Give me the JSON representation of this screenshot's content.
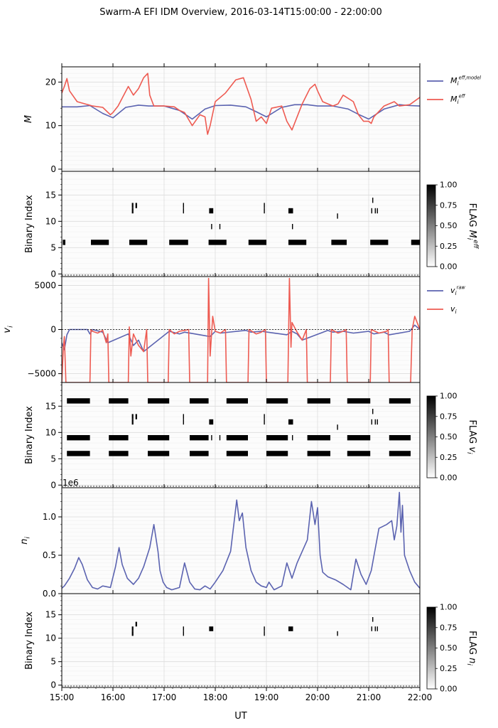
{
  "title": "Swarm-A EFI IDM Overview, 2016-03-14T15:00:00 - 22:00:00",
  "xlabel": "UT",
  "x_ticks": [
    "15:00",
    "16:00",
    "17:00",
    "18:00",
    "19:00",
    "20:00",
    "21:00",
    "22:00"
  ],
  "colors": {
    "model": "#5b63b0",
    "eff": "#ee5b52",
    "grid": "#dddddd"
  },
  "chart_data": [
    {
      "type": "line",
      "ylabel": "M",
      "xlim": [
        15.0,
        22.0
      ],
      "ylim": [
        -0.5,
        23.5
      ],
      "yticks": [
        0,
        10,
        20
      ],
      "legend": "right",
      "series": [
        {
          "name": "M_i^{eff,model}",
          "color": "#5b63b0",
          "x": [
            15.0,
            15.3,
            15.55,
            15.8,
            16.0,
            16.25,
            16.5,
            16.7,
            17.0,
            17.3,
            17.55,
            17.8,
            18.0,
            18.3,
            18.6,
            18.8,
            19.0,
            19.3,
            19.55,
            19.8,
            20.0,
            20.3,
            20.6,
            20.8,
            21.0,
            21.3,
            21.6,
            21.8,
            22.0
          ],
          "y": [
            14.3,
            14.3,
            14.6,
            12.8,
            11.8,
            14.2,
            14.7,
            14.5,
            14.5,
            13.5,
            11.5,
            13.8,
            14.6,
            14.7,
            14.3,
            13.2,
            12.0,
            14.2,
            14.8,
            14.8,
            14.5,
            14.5,
            13.8,
            12.6,
            11.5,
            13.8,
            14.8,
            14.6,
            14.5
          ]
        },
        {
          "name": "M_i^{eff}",
          "color": "#ee5b52",
          "x": [
            15.0,
            15.05,
            15.1,
            15.15,
            15.3,
            15.6,
            15.8,
            15.95,
            16.0,
            16.1,
            16.3,
            16.4,
            16.5,
            16.6,
            16.68,
            16.72,
            16.8,
            17.0,
            17.2,
            17.3,
            17.4,
            17.55,
            17.7,
            17.8,
            17.85,
            17.9,
            18.0,
            18.2,
            18.4,
            18.55,
            18.7,
            18.8,
            18.9,
            19.0,
            19.1,
            19.3,
            19.4,
            19.5,
            19.7,
            19.85,
            19.95,
            20.0,
            20.1,
            20.3,
            20.4,
            20.5,
            20.7,
            20.8,
            20.9,
            21.0,
            21.05,
            21.1,
            21.3,
            21.5,
            21.6,
            21.8,
            22.0
          ],
          "y": [
            17.5,
            19.0,
            20.8,
            18.0,
            15.5,
            14.5,
            14.2,
            12.5,
            13.0,
            14.5,
            19.0,
            17.0,
            18.5,
            21.0,
            22.0,
            17.0,
            14.5,
            14.5,
            14.3,
            13.5,
            13.0,
            10.0,
            12.5,
            12.0,
            8.0,
            10.0,
            15.5,
            17.5,
            20.5,
            21.0,
            16.0,
            11.0,
            12.0,
            10.5,
            14.0,
            14.5,
            11.0,
            9.0,
            15.0,
            18.5,
            19.5,
            18.0,
            15.5,
            14.5,
            15.0,
            17.0,
            15.5,
            12.5,
            11.0,
            11.0,
            10.5,
            12.0,
            14.5,
            15.5,
            14.5,
            14.8,
            16.5
          ]
        }
      ]
    },
    {
      "type": "heatmap",
      "ylabel": "Binary Index",
      "colorbar_label": "FLAG M_i^{eff}",
      "colorbar_ticks": [
        "0.00",
        "0.25",
        "0.50",
        "0.75",
        "1.00"
      ],
      "xlim": [
        15.0,
        22.0
      ],
      "ylim": [
        -0.5,
        19.5
      ],
      "yticks": [
        0,
        5,
        10,
        15
      ],
      "cells": [
        [
          15.02,
          15.07,
          6
        ],
        [
          15.57,
          15.92,
          6
        ],
        [
          16.32,
          16.67,
          6
        ],
        [
          17.1,
          17.47,
          6
        ],
        [
          17.87,
          18.22,
          6
        ],
        [
          18.65,
          19.0,
          6
        ],
        [
          19.43,
          19.78,
          6
        ],
        [
          20.27,
          20.57,
          6
        ],
        [
          21.03,
          21.38,
          6
        ],
        [
          21.83,
          22.0,
          6
        ],
        [
          16.37,
          16.4,
          12
        ],
        [
          16.37,
          16.4,
          13
        ],
        [
          16.44,
          16.47,
          13
        ],
        [
          17.37,
          17.39,
          12
        ],
        [
          17.37,
          17.39,
          13
        ],
        [
          17.88,
          17.96,
          12
        ],
        [
          18.95,
          18.97,
          12
        ],
        [
          18.95,
          18.97,
          13
        ],
        [
          19.43,
          19.52,
          12
        ],
        [
          20.38,
          20.4,
          11
        ],
        [
          21.05,
          21.07,
          12
        ],
        [
          21.07,
          21.09,
          14
        ],
        [
          21.12,
          21.14,
          12
        ],
        [
          21.16,
          21.18,
          12
        ],
        [
          17.92,
          17.94,
          9
        ],
        [
          18.08,
          18.1,
          9
        ],
        [
          19.5,
          19.52,
          9
        ]
      ]
    },
    {
      "type": "line",
      "ylabel": "v_i",
      "xlim": [
        15.0,
        22.0
      ],
      "ylim": [
        -6000,
        6000
      ],
      "yticks": [
        -5000,
        0,
        5000
      ],
      "legend": "right",
      "series": [
        {
          "name": "v_i^{raw}",
          "color": "#5b63b0",
          "x": [
            15.0,
            15.05,
            15.1,
            15.15,
            15.4,
            15.5,
            15.55,
            15.6,
            15.8,
            15.9,
            16.3,
            16.4,
            16.5,
            16.6,
            17.1,
            17.3,
            17.4,
            17.9,
            18.0,
            18.1,
            18.6,
            18.7,
            18.9,
            19.4,
            19.5,
            19.6,
            19.7,
            20.2,
            20.3,
            20.5,
            20.7,
            21.0,
            21.1,
            21.3,
            21.4,
            21.8,
            21.9,
            22.0
          ],
          "y": [
            -1500,
            -2300,
            -600,
            0,
            0,
            0,
            -500,
            0,
            -300,
            -1500,
            -500,
            -1800,
            -1200,
            -2500,
            -200,
            -500,
            -300,
            -800,
            -200,
            -400,
            -100,
            -300,
            -200,
            -600,
            -200,
            -500,
            -1200,
            -100,
            -300,
            -200,
            -400,
            -200,
            -500,
            -300,
            -600,
            -200,
            500,
            0
          ]
        },
        {
          "name": "v_i",
          "color": "#ee5b52",
          "x": [
            15.0,
            15.03,
            15.05,
            15.08,
            15.1,
            15.12,
            15.15,
            15.55,
            15.57,
            15.6,
            15.7,
            15.8,
            15.87,
            15.9,
            15.92,
            16.3,
            16.32,
            16.35,
            16.4,
            16.5,
            16.6,
            16.66,
            16.68,
            17.08,
            17.1,
            17.2,
            17.3,
            17.4,
            17.48,
            17.5,
            17.85,
            17.87,
            17.9,
            17.95,
            18.0,
            18.1,
            18.2,
            18.22,
            18.64,
            18.66,
            18.8,
            18.9,
            18.98,
            19.0,
            19.42,
            19.45,
            19.48,
            19.5,
            19.6,
            19.7,
            19.78,
            19.8,
            20.25,
            20.27,
            20.4,
            20.5,
            20.56,
            20.58,
            21.03,
            21.05,
            21.2,
            21.35,
            21.38,
            21.4,
            21.82,
            21.85,
            21.9,
            22.0
          ],
          "y": [
            -6000,
            -2000,
            -800,
            -6000,
            -6000,
            -6000,
            -6000,
            -6000,
            0,
            -200,
            -400,
            -100,
            -1500,
            -500,
            -6000,
            -6000,
            300,
            -3000,
            -500,
            -1800,
            -2500,
            0,
            -6000,
            -6000,
            0,
            -500,
            -200,
            -100,
            0,
            -6000,
            -6000,
            5800,
            -3000,
            1500,
            -200,
            -400,
            0,
            -6000,
            -6000,
            0,
            -500,
            -300,
            0,
            -6000,
            -6000,
            5800,
            -2000,
            800,
            -300,
            -1200,
            0,
            -6000,
            -6000,
            0,
            -400,
            -200,
            0,
            -6000,
            -6000,
            0,
            -400,
            -200,
            0,
            -6000,
            -6000,
            0,
            1500,
            0
          ]
        }
      ]
    },
    {
      "type": "heatmap",
      "ylabel": "Binary Index",
      "colorbar_label": "FLAG v_i",
      "colorbar_ticks": [
        "0.00",
        "0.25",
        "0.50",
        "0.75",
        "1.00"
      ],
      "xlim": [
        15.0,
        22.0
      ],
      "ylim": [
        -0.5,
        19.5
      ],
      "yticks": [
        0,
        5,
        10,
        15
      ],
      "cells": [
        [
          15.1,
          15.55,
          16
        ],
        [
          15.92,
          16.3,
          16
        ],
        [
          16.68,
          17.1,
          16
        ],
        [
          17.5,
          17.87,
          16
        ],
        [
          18.22,
          18.64,
          16
        ],
        [
          19.0,
          19.42,
          16
        ],
        [
          19.8,
          20.25,
          16
        ],
        [
          20.58,
          21.03,
          16
        ],
        [
          21.4,
          21.82,
          16
        ],
        [
          15.1,
          15.55,
          9
        ],
        [
          15.92,
          16.3,
          9
        ],
        [
          16.68,
          17.1,
          9
        ],
        [
          17.5,
          17.87,
          9
        ],
        [
          18.22,
          18.64,
          9
        ],
        [
          19.0,
          19.42,
          9
        ],
        [
          19.8,
          20.25,
          9
        ],
        [
          20.58,
          21.03,
          9
        ],
        [
          21.4,
          21.82,
          9
        ],
        [
          15.1,
          15.55,
          6
        ],
        [
          15.92,
          16.3,
          6
        ],
        [
          16.68,
          17.1,
          6
        ],
        [
          17.5,
          17.87,
          6
        ],
        [
          18.22,
          18.64,
          6
        ],
        [
          19.0,
          19.42,
          6
        ],
        [
          19.8,
          20.25,
          6
        ],
        [
          20.58,
          21.03,
          6
        ],
        [
          21.4,
          21.82,
          6
        ],
        [
          16.37,
          16.4,
          12
        ],
        [
          16.37,
          16.4,
          13
        ],
        [
          16.44,
          16.47,
          13
        ],
        [
          17.37,
          17.39,
          12
        ],
        [
          17.37,
          17.39,
          13
        ],
        [
          17.88,
          17.96,
          12
        ],
        [
          18.95,
          18.97,
          12
        ],
        [
          18.95,
          18.97,
          13
        ],
        [
          19.43,
          19.52,
          12
        ],
        [
          20.38,
          20.4,
          11
        ],
        [
          21.05,
          21.07,
          12
        ],
        [
          21.07,
          21.09,
          14
        ],
        [
          21.12,
          21.14,
          12
        ],
        [
          21.16,
          21.18,
          12
        ],
        [
          17.92,
          17.94,
          9
        ],
        [
          18.08,
          18.1,
          9
        ],
        [
          19.5,
          19.52,
          9
        ]
      ]
    },
    {
      "type": "line",
      "ylabel": "n_i",
      "offset_label": "1e6",
      "xlim": [
        15.0,
        22.0
      ],
      "ylim": [
        0.0,
        1.38
      ],
      "yticks": [
        0.0,
        0.5,
        1.0
      ],
      "series": [
        {
          "name": "",
          "color": "#5b63b0",
          "x": [
            15.0,
            15.05,
            15.15,
            15.25,
            15.33,
            15.4,
            15.5,
            15.6,
            15.7,
            15.8,
            15.95,
            16.05,
            16.12,
            16.18,
            16.28,
            16.4,
            16.5,
            16.6,
            16.72,
            16.8,
            16.88,
            16.92,
            16.98,
            17.05,
            17.15,
            17.3,
            17.4,
            17.5,
            17.6,
            17.7,
            17.8,
            17.9,
            18.0,
            18.15,
            18.3,
            18.38,
            18.42,
            18.47,
            18.53,
            18.6,
            18.7,
            18.8,
            18.9,
            19.0,
            19.05,
            19.15,
            19.3,
            19.4,
            19.5,
            19.6,
            19.7,
            19.8,
            19.88,
            19.95,
            20.0,
            20.05,
            20.1,
            20.2,
            20.35,
            20.5,
            20.65,
            20.75,
            20.85,
            20.95,
            21.05,
            21.2,
            21.35,
            21.45,
            21.5,
            21.55,
            21.6,
            21.63,
            21.66,
            21.7,
            21.8,
            21.9,
            22.0
          ],
          "y": [
            0.07,
            0.1,
            0.2,
            0.33,
            0.47,
            0.38,
            0.18,
            0.08,
            0.06,
            0.1,
            0.08,
            0.35,
            0.6,
            0.38,
            0.2,
            0.12,
            0.2,
            0.35,
            0.6,
            0.9,
            0.55,
            0.3,
            0.15,
            0.08,
            0.05,
            0.08,
            0.4,
            0.15,
            0.06,
            0.05,
            0.1,
            0.06,
            0.15,
            0.3,
            0.55,
            1.0,
            1.22,
            0.95,
            1.05,
            0.6,
            0.3,
            0.15,
            0.1,
            0.08,
            0.15,
            0.05,
            0.1,
            0.4,
            0.2,
            0.4,
            0.55,
            0.7,
            1.2,
            0.9,
            1.12,
            0.5,
            0.28,
            0.22,
            0.18,
            0.12,
            0.05,
            0.45,
            0.25,
            0.12,
            0.3,
            0.85,
            0.9,
            0.95,
            0.7,
            0.88,
            1.32,
            0.8,
            1.15,
            0.5,
            0.3,
            0.15,
            0.07
          ]
        }
      ]
    },
    {
      "type": "heatmap",
      "ylabel": "Binary Index",
      "colorbar_label": "FLAG n_i",
      "colorbar_ticks": [
        "0.00",
        "0.25",
        "0.50",
        "0.75",
        "1.00"
      ],
      "xlim": [
        15.0,
        22.0
      ],
      "ylim": [
        -0.5,
        19.5
      ],
      "yticks": [
        0,
        5,
        10,
        15
      ],
      "cells": [
        [
          16.37,
          16.4,
          12
        ],
        [
          16.37,
          16.4,
          11
        ],
        [
          16.44,
          16.47,
          13
        ],
        [
          17.37,
          17.39,
          12
        ],
        [
          17.37,
          17.39,
          11
        ],
        [
          17.88,
          17.96,
          12
        ],
        [
          18.95,
          18.97,
          12
        ],
        [
          18.95,
          18.97,
          11
        ],
        [
          19.43,
          19.52,
          12
        ],
        [
          20.38,
          20.4,
          11
        ],
        [
          21.05,
          21.07,
          12
        ],
        [
          21.07,
          21.09,
          14
        ],
        [
          21.12,
          21.14,
          12
        ],
        [
          21.16,
          21.18,
          12
        ]
      ]
    }
  ]
}
